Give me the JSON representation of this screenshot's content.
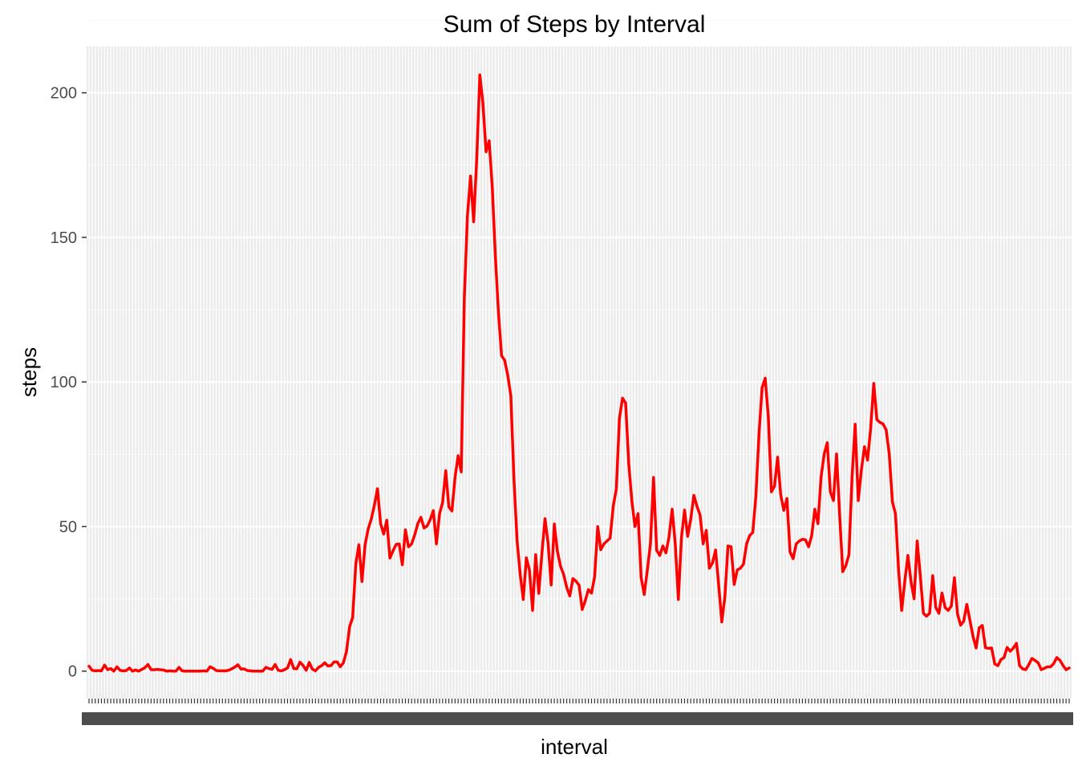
{
  "chart_data": {
    "type": "line",
    "title": "Sum of Steps by Interval",
    "xlabel": "interval",
    "ylabel": "steps",
    "ylim": [
      -9.5,
      216
    ],
    "yticks": [
      0,
      50,
      100,
      150,
      200
    ],
    "grid": true,
    "x_axis": "categorical",
    "x_tick_labels_legible": false,
    "series": [
      {
        "color": "#ff0000",
        "values": [
          1.7,
          0.3,
          0.1,
          0.2,
          0.1,
          2.1,
          0.5,
          0.9,
          0.0,
          1.5,
          0.3,
          0.1,
          0.2,
          1.1,
          0.0,
          0.4,
          0.0,
          0.6,
          1.2,
          2.3,
          0.5,
          0.5,
          0.6,
          0.5,
          0.4,
          0.0,
          0.1,
          0.0,
          0.0,
          1.3,
          0.1,
          0.0,
          0.0,
          0.0,
          0.0,
          0.0,
          0.0,
          0.1,
          0.0,
          1.5,
          1.0,
          0.2,
          0.1,
          0.1,
          0.1,
          0.3,
          0.8,
          1.4,
          2.2,
          0.7,
          0.8,
          0.2,
          0.1,
          0.0,
          0.0,
          0.0,
          0.0,
          1.3,
          0.9,
          0.6,
          2.3,
          0.3,
          0.1,
          0.5,
          1.1,
          4.0,
          0.9,
          0.8,
          3.1,
          2.0,
          0.3,
          3.0,
          0.7,
          0.1,
          1.3,
          1.9,
          2.9,
          1.8,
          1.9,
          3.2,
          3.2,
          1.5,
          2.9,
          6.8,
          15.3,
          18.6,
          37.0,
          43.7,
          31.0,
          43.7,
          49.2,
          52.6,
          57.4,
          63.1,
          51.0,
          47.4,
          52.2,
          39.1,
          41.6,
          43.8,
          44.0,
          36.8,
          48.9,
          43.0,
          44.0,
          47.1,
          51.0,
          53.2,
          49.5,
          50.2,
          52.4,
          55.5,
          44.0,
          54.4,
          58.4,
          69.3,
          56.8,
          55.4,
          67.0,
          74.5,
          68.9,
          129.4,
          157.5,
          171.2,
          155.4,
          177.3,
          206.2,
          196.3,
          179.6,
          183.4,
          167.5,
          143.5,
          124.0,
          109.1,
          107.5,
          102.3,
          95.1,
          66.2,
          45.2,
          33.5,
          24.8,
          39.2,
          34.9,
          21.0,
          40.3,
          26.9,
          40.6,
          52.7,
          44.3,
          29.8,
          50.9,
          41.5,
          36.3,
          33.5,
          29.0,
          26.0,
          32.0,
          31.1,
          29.7,
          21.3,
          24.4,
          28.2,
          27.0,
          32.6,
          50.0,
          42.0,
          44.0,
          45.0,
          46.0,
          57.0,
          63.0,
          87.4,
          94.4,
          92.7,
          71.8,
          59.0,
          50.0,
          54.5,
          32.4,
          26.5,
          35.0,
          44.0,
          67.0,
          41.8,
          40.0,
          43.3,
          40.9,
          46.5,
          56.0,
          44.0,
          24.8,
          46.2,
          55.7,
          46.6,
          52.6,
          60.8,
          57.0,
          54.0,
          44.0,
          48.7,
          35.6,
          37.4,
          41.9,
          29.8,
          17.0,
          25.7,
          43.3,
          43.0,
          30.0,
          35.0,
          35.6,
          37.0,
          44.0,
          46.9,
          48.0,
          60.6,
          82.0,
          98.0,
          101.3,
          88.0,
          62.0,
          64.0,
          74.0,
          61.0,
          55.6,
          59.7,
          41.2,
          38.9,
          44.0,
          45.0,
          45.6,
          45.4,
          43.0,
          46.9,
          56.0,
          51.0,
          67.0,
          75.0,
          79.0,
          62.0,
          59.0,
          75.1,
          54.0,
          34.4,
          36.5,
          40.3,
          67.0,
          85.4,
          59.0,
          69.5,
          77.6,
          73.0,
          84.0,
          99.5,
          87.0,
          86.0,
          85.5,
          83.4,
          75.0,
          58.6,
          54.4,
          34.9,
          21.0,
          31.0,
          40.0,
          31.0,
          25.0,
          45.0,
          33.0,
          20.0,
          19.0,
          20.0,
          33.0,
          22.0,
          20.0,
          27.0,
          22.0,
          21.0,
          22.5,
          32.3,
          19.8,
          15.9,
          17.3,
          23.1,
          17.6,
          12.0,
          8.0,
          15.0,
          15.8,
          8.1,
          7.9,
          8.0,
          2.5,
          1.9,
          4.0,
          4.7,
          8.2,
          6.9,
          8.0,
          9.6,
          1.9,
          0.8,
          0.5,
          2.3,
          4.4,
          3.7,
          2.9,
          0.5,
          1.0,
          1.5,
          1.5,
          2.6,
          4.7,
          3.8,
          2.0,
          0.5,
          1.1
        ]
      }
    ]
  }
}
